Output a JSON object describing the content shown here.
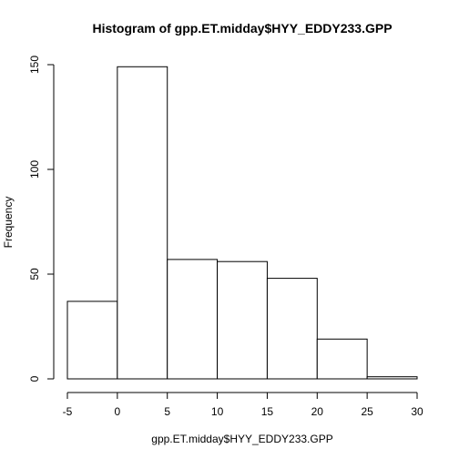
{
  "chart_data": {
    "type": "bar",
    "title": "Histogram of gpp.ET.midday$HYY_EDDY233.GPP",
    "xlabel": "gpp.ET.midday$HYY_EDDY233.GPP",
    "ylabel": "Frequency",
    "bins": [
      {
        "start": -5,
        "end": 0,
        "count": 37
      },
      {
        "start": 0,
        "end": 5,
        "count": 149
      },
      {
        "start": 5,
        "end": 10,
        "count": 57
      },
      {
        "start": 10,
        "end": 15,
        "count": 56
      },
      {
        "start": 15,
        "end": 20,
        "count": 48
      },
      {
        "start": 20,
        "end": 25,
        "count": 19
      },
      {
        "start": 25,
        "end": 30,
        "count": 1
      }
    ],
    "xlim": [
      -5,
      30
    ],
    "ylim": [
      0,
      150
    ],
    "x_ticks": [
      -5,
      0,
      5,
      10,
      15,
      20,
      25,
      30
    ],
    "y_ticks": [
      0,
      50,
      100,
      150
    ],
    "x_tick_labels": [
      "-5",
      "0",
      "5",
      "10",
      "15",
      "20",
      "25",
      "30"
    ],
    "y_tick_labels": [
      "0",
      "50",
      "100",
      "150"
    ],
    "grid": false,
    "colors": {
      "bar_fill": "#ffffff",
      "bar_stroke": "#000000"
    }
  }
}
